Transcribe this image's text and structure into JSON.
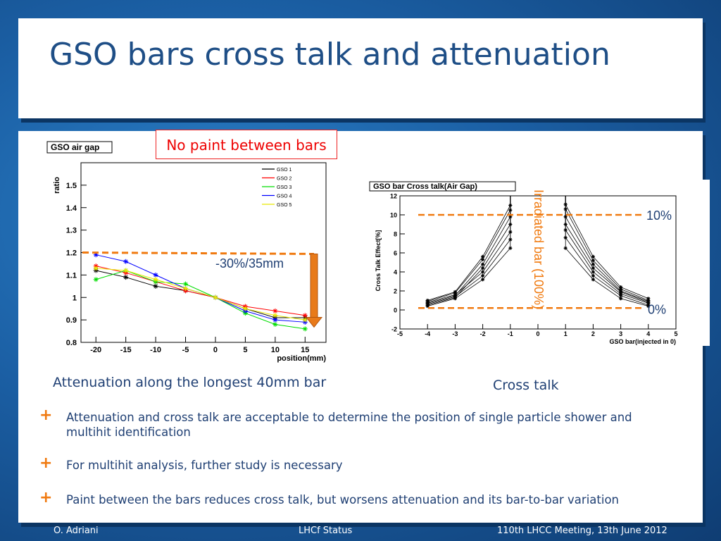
{
  "slide": {
    "title": "GSO bars cross talk and attenuation",
    "note": "No paint between bars",
    "caption_left": "Attenuation along the longest 40mm bar",
    "caption_right": "Cross talk",
    "bullets": [
      "Attenuation and cross talk are acceptable to determine the position of single particle shower and multihit identification",
      "For multihit analysis, further study is necessary",
      "Paint between the bars reduces cross talk, but worsens attenuation and its bar-to-bar variation"
    ],
    "footer": {
      "left": "O. Adriani",
      "center": "LHCf Status",
      "right": "110th LHCC Meeting, 13th June 2012"
    },
    "colors": {
      "accent": "#f07a10",
      "title": "#1e4e86",
      "text": "#1f3f73"
    }
  },
  "chart_data": [
    {
      "type": "line",
      "title": "GSO air gap",
      "xlabel": "position(mm)",
      "ylabel": "ratio",
      "xlim": [
        -22.5,
        18.5
      ],
      "ylim": [
        0.8,
        1.6
      ],
      "xticks": [
        -20,
        -15,
        -10,
        -5,
        0,
        5,
        10,
        15
      ],
      "yticks": [
        0.8,
        0.9,
        1,
        1.1,
        1.2,
        1.3,
        1.4,
        1.5
      ],
      "ytick_labels": [
        "0.8",
        "0.9",
        "1",
        "1.1",
        "1.2",
        "1.3",
        "1.4",
        "1.5"
      ],
      "x": [
        -20,
        -15,
        -10,
        -5,
        0,
        5,
        10,
        15
      ],
      "series": [
        {
          "name": "GSO 1",
          "color": "#000000",
          "values": [
            1.12,
            1.09,
            1.05,
            1.03,
            1.0,
            0.95,
            0.91,
            0.91
          ]
        },
        {
          "name": "GSO 2",
          "color": "#ff0000",
          "values": [
            1.14,
            1.11,
            1.07,
            1.03,
            1.0,
            0.96,
            0.94,
            0.92
          ]
        },
        {
          "name": "GSO 3",
          "color": "#00dd00",
          "values": [
            1.08,
            1.12,
            1.07,
            1.06,
            1.0,
            0.93,
            0.88,
            0.86
          ]
        },
        {
          "name": "GSO 4",
          "color": "#0000ff",
          "values": [
            1.19,
            1.16,
            1.1,
            1.04,
            1.0,
            0.94,
            0.9,
            0.89
          ]
        },
        {
          "name": "GSO 5",
          "color": "#e8e800",
          "values": [
            1.13,
            1.12,
            1.08,
            1.04,
            1.0,
            0.95,
            0.92,
            0.9
          ]
        }
      ],
      "annotation": {
        "text": "-30%/35mm",
        "reference_level": 1.2
      },
      "legend_position": "top-right"
    },
    {
      "type": "line",
      "title": "GSO bar Cross talk(Air Gap)",
      "xlabel": "GSO bar(injected in 0)",
      "ylabel": "Cross Talk Effect[%]",
      "xlim": [
        -5,
        5
      ],
      "ylim": [
        -2,
        12
      ],
      "xticks": [
        -5,
        -4,
        -3,
        -2,
        -1,
        0,
        1,
        2,
        3,
        4,
        5
      ],
      "yticks": [
        -2,
        0,
        2,
        4,
        6,
        8,
        10,
        12
      ],
      "x": [
        -4,
        -3,
        -2,
        -1,
        1,
        2,
        3,
        4
      ],
      "series": [
        {
          "values": [
            0.4,
            1.2,
            3.2,
            6.5,
            6.5,
            3.2,
            1.2,
            0.4
          ]
        },
        {
          "values": [
            0.6,
            1.4,
            3.6,
            7.4,
            7.6,
            3.6,
            1.5,
            0.5
          ]
        },
        {
          "values": [
            0.8,
            1.6,
            4.0,
            8.2,
            8.4,
            4.0,
            1.7,
            0.7
          ]
        },
        {
          "values": [
            0.5,
            1.3,
            4.4,
            9.0,
            9.0,
            4.4,
            1.9,
            0.8
          ]
        },
        {
          "values": [
            0.7,
            1.5,
            4.8,
            9.8,
            9.8,
            4.8,
            2.0,
            0.9
          ]
        },
        {
          "values": [
            0.9,
            1.8,
            5.3,
            10.5,
            10.6,
            5.2,
            2.2,
            1.0
          ]
        },
        {
          "values": [
            1.0,
            1.9,
            5.6,
            11.0,
            11.1,
            5.6,
            2.4,
            1.2
          ]
        }
      ],
      "annotations": {
        "vertical": "Irradiated bar (100%)",
        "top_line": "10%",
        "bottom_line": "0%",
        "top_level": 10,
        "bottom_level": 0.2
      }
    }
  ]
}
